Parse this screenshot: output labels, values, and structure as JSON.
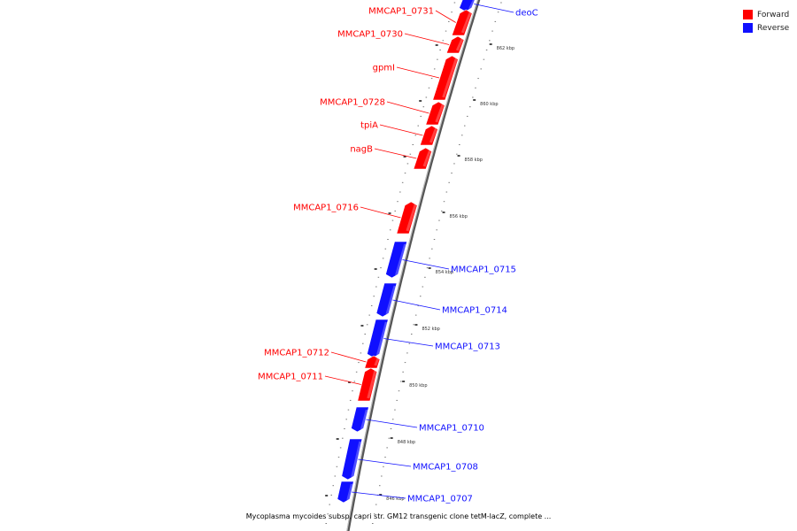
{
  "colors": {
    "forward": "#ff0000",
    "reverse": "#1010ff",
    "backbone": "#888888"
  },
  "legend": [
    {
      "label": "Forward",
      "color": "#ff0000"
    },
    {
      "label": "Reverse",
      "color": "#1010ff"
    }
  ],
  "ticks": [
    {
      "label": "862 kbp"
    },
    {
      "label": "860 kbp"
    },
    {
      "label": "858 kbp"
    },
    {
      "label": "856 kbp"
    },
    {
      "label": "854 kbp"
    },
    {
      "label": "852 kbp"
    },
    {
      "label": "850 kbp"
    },
    {
      "label": "848 kbp"
    },
    {
      "label": "846 kbp"
    }
  ],
  "genes": [
    {
      "name": "deoC",
      "strand": "reverse"
    },
    {
      "name": "MMCAP1_0731",
      "strand": "forward"
    },
    {
      "name": "MMCAP1_0730",
      "strand": "forward"
    },
    {
      "name": "gpmI",
      "strand": "forward"
    },
    {
      "name": "MMCAP1_0728",
      "strand": "forward"
    },
    {
      "name": "tpiA",
      "strand": "forward"
    },
    {
      "name": "nagB",
      "strand": "forward"
    },
    {
      "name": "MMCAP1_0716",
      "strand": "forward"
    },
    {
      "name": "MMCAP1_0715",
      "strand": "reverse"
    },
    {
      "name": "MMCAP1_0714",
      "strand": "reverse"
    },
    {
      "name": "MMCAP1_0713",
      "strand": "reverse"
    },
    {
      "name": "MMCAP1_0712",
      "strand": "forward"
    },
    {
      "name": "MMCAP1_0711",
      "strand": "forward"
    },
    {
      "name": "MMCAP1_0710",
      "strand": "reverse"
    },
    {
      "name": "MMCAP1_0708",
      "strand": "reverse"
    },
    {
      "name": "MMCAP1_0707",
      "strand": "reverse"
    }
  ],
  "footer": "Mycoplasma mycoides subsp. capri str. GM12 transgenic clone tetM-lacZ, complete ..."
}
